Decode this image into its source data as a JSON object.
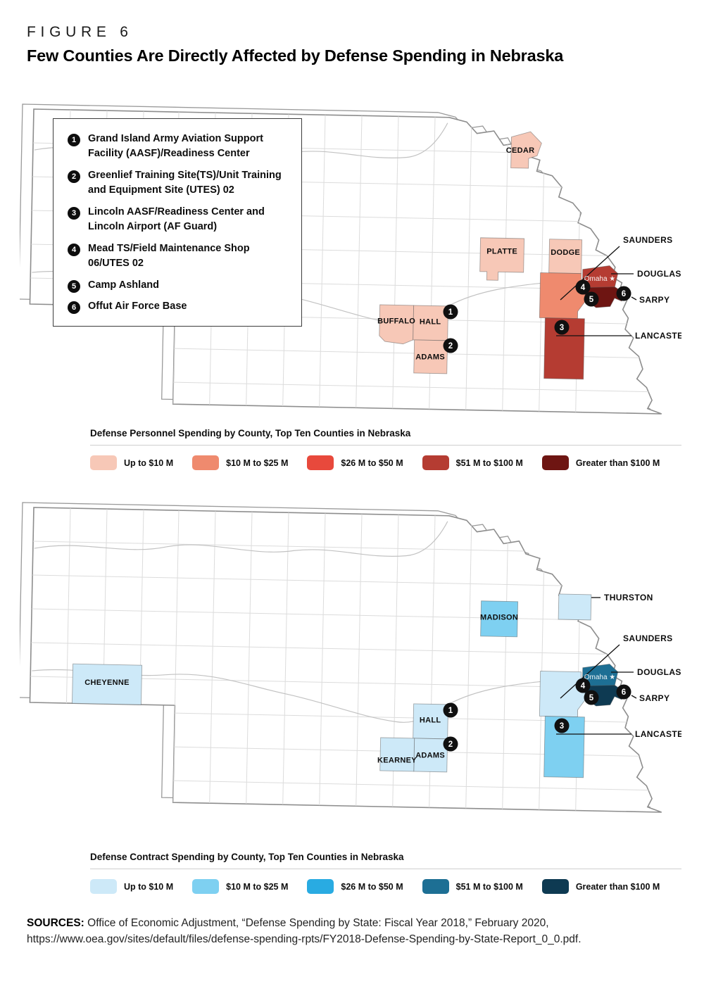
{
  "figure": {
    "label": "FIGURE 6",
    "title": "Few Counties Are Directly Affected by Defense Spending in Nebraska"
  },
  "site_legend": {
    "items": [
      {
        "number": "1",
        "text": "Grand Island Army Aviation Support Facility (AASF)/Readiness Center"
      },
      {
        "number": "2",
        "text": "Greenlief Training Site(TS)/Unit Training and Equipment Site (UTES) 02"
      },
      {
        "number": "3",
        "text": "Lincoln AASF/Readiness Center and Lincoln Airport (AF Guard)"
      },
      {
        "number": "4",
        "text": "Mead TS/Field Maintenance Shop 06/UTES 02"
      },
      {
        "number": "5",
        "text": "Camp Ashland"
      },
      {
        "number": "6",
        "text": "Offut Air Force Base"
      }
    ]
  },
  "maps": [
    {
      "id": "personnel",
      "section_title": "Defense Personnel Spending by County, Top Ten Counties in Nebraska",
      "legend": [
        {
          "label": "Up to $10 M",
          "color": "#f7c8b7"
        },
        {
          "label": "$10 M to $25 M",
          "color": "#ef8a6e"
        },
        {
          "label": "$26 M to $50 M",
          "color": "#e8493c"
        },
        {
          "label": "$51 M to $100 M",
          "color": "#b53c32"
        },
        {
          "label": "Greater than $100 M",
          "color": "#6e1512"
        }
      ],
      "city": {
        "name": "Omaha"
      },
      "counties": [
        {
          "id": "cedar",
          "name": "CEDAR",
          "bucket": 0,
          "label_inside": true
        },
        {
          "id": "platte",
          "name": "PLATTE",
          "bucket": 0,
          "label_inside": true
        },
        {
          "id": "dodge",
          "name": "DODGE",
          "bucket": 0,
          "label_inside": true
        },
        {
          "id": "saunders",
          "name": "SAUNDERS",
          "bucket": 1,
          "label_inside": false
        },
        {
          "id": "douglas",
          "name": "DOUGLAS",
          "bucket": 3,
          "label_inside": false
        },
        {
          "id": "sarpy",
          "name": "SARPY",
          "bucket": 4,
          "label_inside": false
        },
        {
          "id": "lancaster",
          "name": "LANCASTER",
          "bucket": 3,
          "label_inside": false
        },
        {
          "id": "buffalo",
          "name": "BUFFALO",
          "bucket": 0,
          "label_inside": true
        },
        {
          "id": "hall",
          "name": "HALL",
          "bucket": 0,
          "label_inside": true
        },
        {
          "id": "adams",
          "name": "ADAMS",
          "bucket": 0,
          "label_inside": true
        }
      ],
      "markers": [
        {
          "number": "1"
        },
        {
          "number": "2"
        },
        {
          "number": "3"
        },
        {
          "number": "4"
        },
        {
          "number": "5"
        },
        {
          "number": "6"
        }
      ]
    },
    {
      "id": "contract",
      "section_title": "Defense Contract Spending by County, Top Ten Counties in Nebraska",
      "legend": [
        {
          "label": "Up to $10 M",
          "color": "#cde9f8"
        },
        {
          "label": "$10 M to $25 M",
          "color": "#7ed0f1"
        },
        {
          "label": "$26 M to $50 M",
          "color": "#29abe2"
        },
        {
          "label": "$51 M to $100 M",
          "color": "#1d6f94"
        },
        {
          "label": "Greater than $100 M",
          "color": "#0e3a52"
        }
      ],
      "city": {
        "name": "Omaha"
      },
      "counties": [
        {
          "id": "thurston",
          "name": "THURSTON",
          "bucket": 0,
          "label_inside": false
        },
        {
          "id": "madison",
          "name": "MADISON",
          "bucket": 1,
          "label_inside": true
        },
        {
          "id": "cheyenne",
          "name": "CHEYENNE",
          "bucket": 0,
          "label_inside": true
        },
        {
          "id": "saunders",
          "name": "SAUNDERS",
          "bucket": 0,
          "label_inside": false
        },
        {
          "id": "douglas",
          "name": "DOUGLAS",
          "bucket": 3,
          "label_inside": false
        },
        {
          "id": "sarpy",
          "name": "SARPY",
          "bucket": 4,
          "label_inside": false
        },
        {
          "id": "lancaster",
          "name": "LANCASTER",
          "bucket": 1,
          "label_inside": false
        },
        {
          "id": "hall",
          "name": "HALL",
          "bucket": 0,
          "label_inside": true
        },
        {
          "id": "adams",
          "name": "ADAMS",
          "bucket": 0,
          "label_inside": true
        },
        {
          "id": "kearney",
          "name": "KEARNEY",
          "bucket": 0,
          "label_inside": true
        }
      ],
      "markers": [
        {
          "number": "1"
        },
        {
          "number": "2"
        },
        {
          "number": "3"
        },
        {
          "number": "4"
        },
        {
          "number": "5"
        },
        {
          "number": "6"
        }
      ]
    }
  ],
  "sources": {
    "label": "SOURCES:",
    "text": " Office of Economic Adjustment, “Defense Spending by State: Fiscal Year 2018,” February 2020, https://www.oea.gov/sites/default/files/defense-spending-rpts/FY2018-Defense-Spending-by-State-Report_0_0.pdf."
  }
}
